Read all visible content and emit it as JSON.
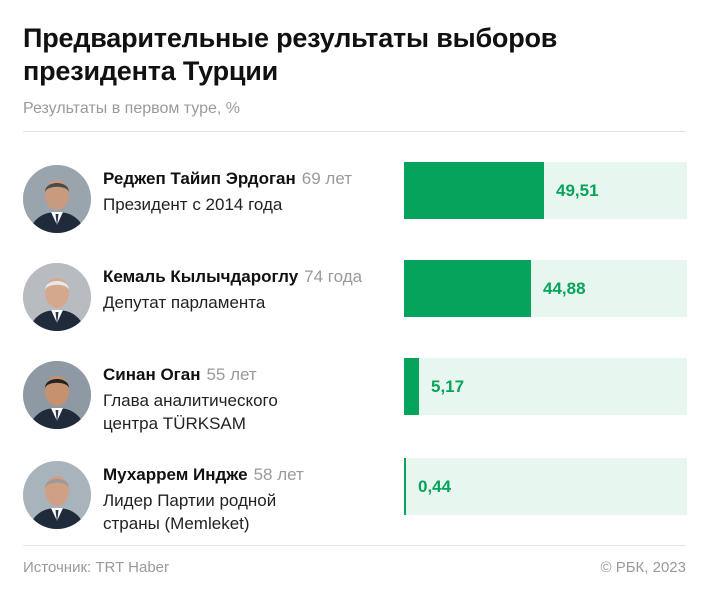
{
  "title": "Предварительные результаты выборов президента Турции",
  "subtitle": "Результаты в первом туре, %",
  "footer": {
    "source": "Источник: TRT Haber",
    "copyright": "© РБК, 2023"
  },
  "colors": {
    "bar": "#06a35d",
    "track": "#e7f6ee",
    "label": "#06a35d"
  },
  "candidates": [
    {
      "name": "Реджеп Тайип Эрдоган",
      "age": "69 лет",
      "role": [
        "Президент с 2014 года"
      ],
      "value_label": "49,51",
      "value": 49.51
    },
    {
      "name": "Кемаль Кылычдароглу",
      "age": "74 года",
      "role": [
        "Депутат парламента"
      ],
      "value_label": "44,88",
      "value": 44.88
    },
    {
      "name": "Синан Оган",
      "age": "55 лет",
      "role": [
        "Глава аналитического",
        "центра TÜRKSAM"
      ],
      "value_label": "5,17",
      "value": 5.17
    },
    {
      "name": "Мухаррем Индже",
      "age": "58 лет",
      "role": [
        "Лидер Партии родной",
        "страны (Memleket)"
      ],
      "value_label": "0,44",
      "value": 0.44
    }
  ],
  "chart_data": {
    "type": "bar",
    "orientation": "horizontal",
    "title": "Предварительные результаты выборов президента Турции",
    "subtitle": "Результаты в первом туре, %",
    "categories": [
      "Реджеп Тайип Эрдоган",
      "Кемаль Кылычдароглу",
      "Синан Оган",
      "Мухаррем Индже"
    ],
    "values": [
      49.51,
      44.88,
      5.17,
      0.44
    ],
    "data_labels": [
      "49,51",
      "44,88",
      "5,17",
      "0,44"
    ],
    "xlim": [
      0,
      100
    ],
    "grid": false,
    "legend": "none"
  }
}
